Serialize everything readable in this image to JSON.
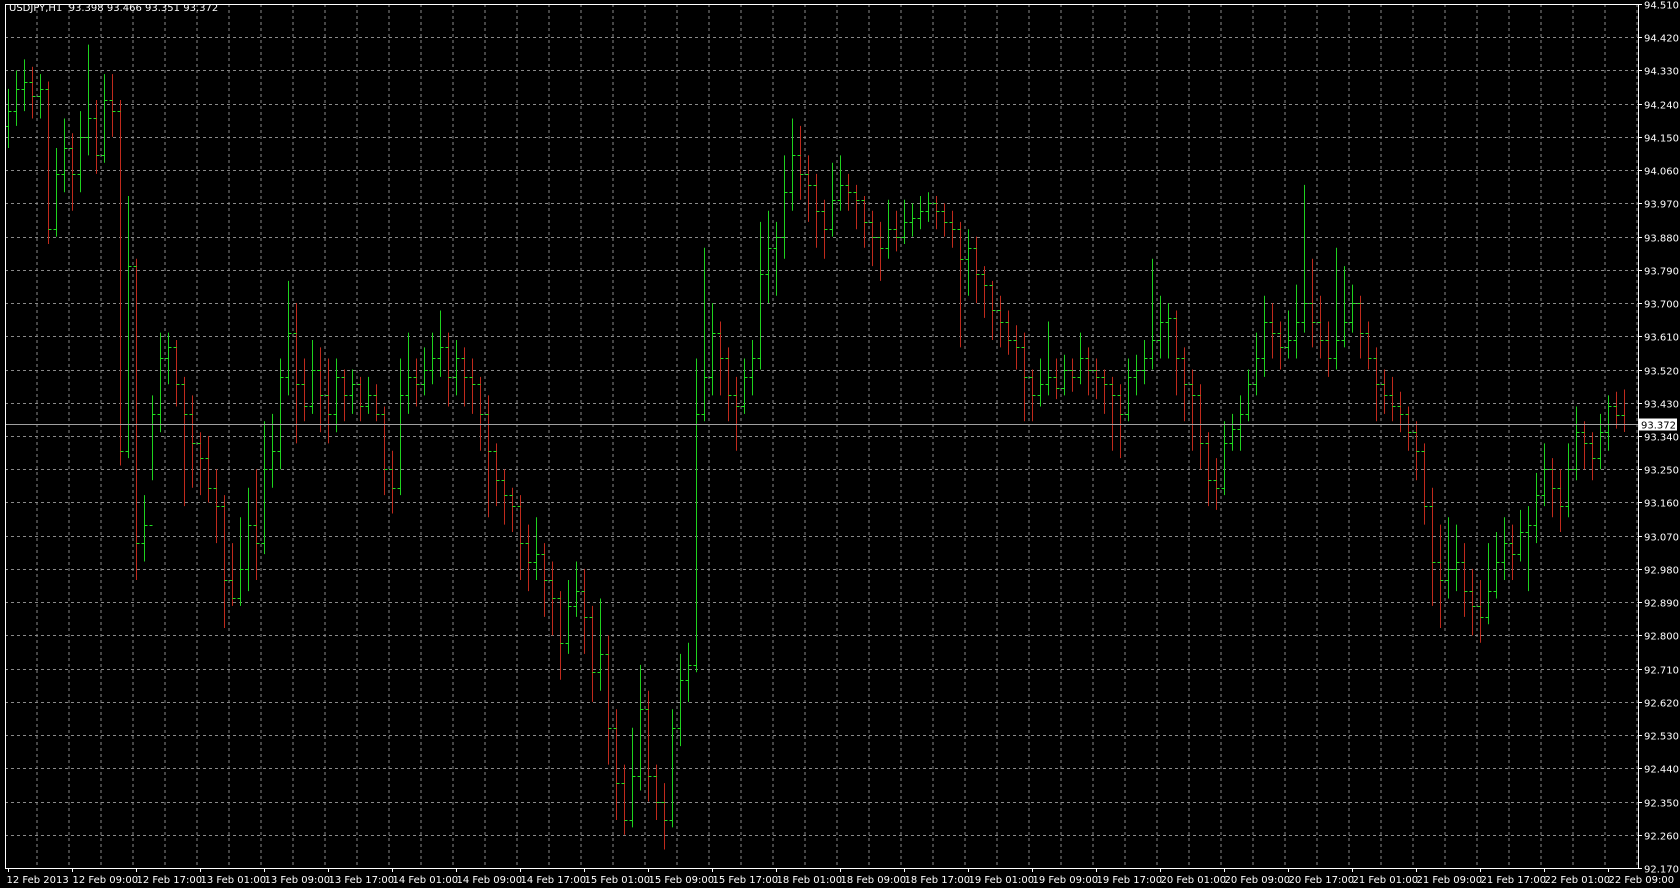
{
  "header": {
    "symbol": "USDJPY,H1",
    "open": "93.398",
    "high": "93.466",
    "low": "93.351",
    "close": "93.372"
  },
  "bid_line": {
    "value": 93.372,
    "label": "93.372"
  },
  "colors": {
    "background": "#000000",
    "bull": "#1ed21e",
    "bear": "#c02a1c",
    "tick": "#22e022",
    "grid": "#8a8a8a",
    "axis": "#ffffff",
    "bid_line": "#a0a0a0"
  },
  "chart_data": {
    "type": "ohlc-bar",
    "symbol": "USDJPY",
    "timeframe": "H1",
    "ylim": [
      92.17,
      94.51
    ],
    "grid": true,
    "y_ticks": [
      "94.510",
      "94.420",
      "94.330",
      "94.240",
      "94.150",
      "94.060",
      "93.970",
      "93.880",
      "93.790",
      "93.700",
      "93.610",
      "93.520",
      "93.430",
      "93.340",
      "93.250",
      "93.160",
      "93.070",
      "92.980",
      "92.890",
      "92.800",
      "92.710",
      "92.620",
      "92.530",
      "92.440",
      "92.350",
      "92.260",
      "92.170"
    ],
    "x_ticks": [
      "12 Feb 2013",
      "12 Feb 09:00",
      "12 Feb 17:00",
      "13 Feb 01:00",
      "13 Feb 09:00",
      "13 Feb 17:00",
      "14 Feb 01:00",
      "14 Feb 09:00",
      "14 Feb 17:00",
      "15 Feb 01:00",
      "15 Feb 09:00",
      "15 Feb 17:00",
      "18 Feb 01:00",
      "18 Feb 09:00",
      "18 Feb 17:00",
      "19 Feb 01:00",
      "19 Feb 09:00",
      "19 Feb 17:00",
      "20 Feb 01:00",
      "20 Feb 09:00",
      "20 Feb 17:00",
      "21 Feb 01:00",
      "21 Feb 09:00",
      "21 Feb 17:00",
      "22 Feb 01:00",
      "22 Feb 09:00"
    ],
    "bars": [
      [
        94.18,
        94.28,
        94.12,
        94.22
      ],
      [
        94.22,
        94.33,
        94.18,
        94.28
      ],
      [
        94.28,
        94.36,
        94.22,
        94.3
      ],
      [
        94.3,
        94.34,
        94.2,
        94.26
      ],
      [
        94.26,
        94.32,
        94.2,
        94.28
      ],
      [
        94.28,
        94.3,
        93.86,
        93.9
      ],
      [
        93.9,
        94.12,
        93.88,
        94.05
      ],
      [
        94.05,
        94.2,
        94.0,
        94.12
      ],
      [
        94.12,
        94.16,
        93.95,
        94.05
      ],
      [
        94.05,
        94.22,
        94.0,
        94.15
      ],
      [
        94.15,
        94.4,
        94.1,
        94.2
      ],
      [
        94.2,
        94.25,
        94.05,
        94.1
      ],
      [
        94.1,
        94.32,
        94.08,
        94.25
      ],
      [
        94.25,
        94.32,
        94.15,
        94.22
      ],
      [
        94.22,
        94.25,
        93.26,
        93.3
      ],
      [
        93.3,
        93.99,
        93.28,
        93.8
      ],
      [
        93.8,
        93.82,
        92.95,
        93.05
      ],
      [
        93.05,
        93.18,
        93.0,
        93.1
      ],
      [
        93.1,
        93.45,
        93.22,
        93.4
      ],
      [
        93.4,
        93.62,
        93.35,
        93.55
      ],
      [
        93.55,
        93.62,
        93.48,
        93.58
      ],
      [
        93.58,
        93.6,
        93.42,
        93.48
      ],
      [
        93.48,
        93.5,
        93.15,
        93.4
      ],
      [
        93.4,
        93.45,
        93.2,
        93.32
      ],
      [
        93.32,
        93.35,
        93.18,
        93.28
      ],
      [
        93.28,
        93.34,
        93.16,
        93.2
      ],
      [
        93.2,
        93.25,
        93.05,
        93.15
      ],
      [
        93.15,
        93.18,
        92.82,
        92.95
      ],
      [
        92.95,
        93.05,
        92.88,
        92.9
      ],
      [
        92.9,
        93.12,
        92.88,
        92.98
      ],
      [
        92.98,
        93.2,
        92.92,
        93.1
      ],
      [
        93.1,
        93.25,
        92.95,
        93.05
      ],
      [
        93.05,
        93.38,
        93.02,
        93.25
      ],
      [
        93.25,
        93.4,
        93.2,
        93.3
      ],
      [
        93.3,
        93.55,
        93.25,
        93.5
      ],
      [
        93.5,
        93.76,
        93.45,
        93.62
      ],
      [
        93.62,
        93.7,
        93.32,
        93.48
      ],
      [
        93.48,
        93.55,
        93.38,
        93.42
      ],
      [
        93.42,
        93.6,
        93.4,
        93.52
      ],
      [
        93.52,
        93.58,
        93.35,
        93.45
      ],
      [
        93.45,
        93.55,
        93.32,
        93.4
      ],
      [
        93.4,
        93.55,
        93.35,
        93.5
      ],
      [
        93.5,
        93.52,
        93.38,
        93.45
      ],
      [
        93.45,
        93.52,
        93.4,
        93.48
      ],
      [
        93.48,
        93.5,
        93.38,
        93.42
      ],
      [
        93.42,
        93.5,
        93.4,
        93.45
      ],
      [
        93.45,
        93.48,
        93.38,
        93.4
      ],
      [
        93.4,
        93.42,
        93.18,
        93.25
      ],
      [
        93.25,
        93.3,
        93.13,
        93.2
      ],
      [
        93.2,
        93.55,
        93.18,
        93.45
      ],
      [
        93.45,
        93.62,
        93.4,
        93.5
      ],
      [
        93.5,
        93.55,
        93.42,
        93.48
      ],
      [
        93.48,
        93.58,
        93.45,
        93.52
      ],
      [
        93.52,
        93.62,
        93.48,
        93.55
      ],
      [
        93.55,
        93.68,
        93.5,
        93.58
      ],
      [
        93.58,
        93.62,
        93.42,
        93.5
      ],
      [
        93.5,
        93.6,
        93.45,
        93.55
      ],
      [
        93.55,
        93.58,
        93.42,
        93.5
      ],
      [
        93.5,
        93.55,
        93.4,
        93.48
      ],
      [
        93.48,
        93.5,
        93.3,
        93.4
      ],
      [
        93.4,
        93.45,
        93.12,
        93.3
      ],
      [
        93.3,
        93.32,
        93.15,
        93.22
      ],
      [
        93.22,
        93.25,
        93.1,
        93.18
      ],
      [
        93.18,
        93.2,
        93.08,
        93.15
      ],
      [
        93.15,
        93.18,
        92.95,
        93.05
      ],
      [
        93.05,
        93.1,
        92.92,
        93.0
      ],
      [
        93.0,
        93.12,
        92.95,
        93.02
      ],
      [
        93.02,
        93.05,
        92.85,
        92.95
      ],
      [
        92.95,
        93.0,
        92.8,
        92.9
      ],
      [
        92.9,
        92.92,
        92.68,
        92.78
      ],
      [
        92.78,
        92.95,
        92.75,
        92.88
      ],
      [
        92.88,
        93.0,
        92.85,
        92.92
      ],
      [
        92.92,
        92.98,
        92.75,
        92.85
      ],
      [
        92.85,
        92.88,
        92.62,
        92.7
      ],
      [
        92.7,
        92.9,
        92.65,
        92.75
      ],
      [
        92.75,
        92.8,
        92.45,
        92.55
      ],
      [
        92.55,
        92.6,
        92.3,
        92.4
      ],
      [
        92.4,
        92.45,
        92.26,
        92.3
      ],
      [
        92.3,
        92.55,
        92.28,
        92.42
      ],
      [
        92.42,
        92.72,
        92.38,
        92.6
      ],
      [
        92.6,
        92.65,
        92.35,
        92.42
      ],
      [
        92.42,
        92.45,
        92.3,
        92.35
      ],
      [
        92.35,
        92.4,
        92.22,
        92.3
      ],
      [
        92.3,
        92.6,
        92.28,
        92.55
      ],
      [
        92.55,
        92.75,
        92.5,
        92.68
      ],
      [
        92.68,
        92.78,
        92.62,
        92.72
      ],
      [
        92.72,
        93.55,
        92.7,
        93.4
      ],
      [
        93.4,
        93.85,
        93.38,
        93.5
      ],
      [
        93.5,
        93.7,
        93.45,
        93.62
      ],
      [
        93.62,
        93.65,
        93.45,
        93.55
      ],
      [
        93.55,
        93.58,
        93.38,
        93.45
      ],
      [
        93.45,
        93.5,
        93.3,
        93.42
      ],
      [
        93.42,
        93.55,
        93.4,
        93.5
      ],
      [
        93.5,
        93.6,
        93.45,
        93.55
      ],
      [
        93.55,
        93.92,
        93.52,
        93.78
      ],
      [
        93.78,
        93.95,
        93.7,
        93.85
      ],
      [
        93.85,
        93.92,
        93.72,
        93.88
      ],
      [
        93.88,
        94.1,
        93.82,
        94.0
      ],
      [
        94.0,
        94.2,
        93.95,
        94.1
      ],
      [
        94.1,
        94.18,
        93.98,
        94.05
      ],
      [
        94.05,
        94.1,
        93.92,
        94.02
      ],
      [
        94.02,
        94.05,
        93.85,
        93.95
      ],
      [
        93.95,
        93.98,
        93.82,
        93.9
      ],
      [
        93.9,
        94.08,
        93.88,
        93.98
      ],
      [
        93.98,
        94.1,
        93.95,
        94.02
      ],
      [
        94.02,
        94.05,
        93.95,
        94.0
      ],
      [
        94.0,
        94.02,
        93.9,
        93.98
      ],
      [
        93.98,
        93.99,
        93.85,
        93.92
      ],
      [
        93.92,
        93.95,
        93.8,
        93.88
      ],
      [
        93.88,
        93.92,
        93.76,
        93.85
      ],
      [
        93.85,
        93.98,
        93.82,
        93.9
      ],
      [
        93.9,
        93.95,
        93.84,
        93.88
      ],
      [
        93.88,
        93.98,
        93.86,
        93.92
      ],
      [
        93.92,
        93.97,
        93.88,
        93.93
      ],
      [
        93.93,
        93.99,
        93.9,
        93.95
      ],
      [
        93.95,
        94.0,
        93.92,
        93.97
      ],
      [
        93.97,
        93.99,
        93.9,
        93.95
      ],
      [
        93.95,
        93.97,
        93.88,
        93.92
      ],
      [
        93.92,
        93.95,
        93.85,
        93.9
      ],
      [
        93.9,
        93.92,
        93.58,
        93.82
      ],
      [
        93.82,
        93.9,
        93.72,
        93.85
      ],
      [
        93.85,
        93.88,
        93.7,
        93.78
      ],
      [
        93.78,
        93.8,
        93.66,
        93.75
      ],
      [
        93.75,
        93.76,
        93.6,
        93.68
      ],
      [
        93.68,
        93.72,
        93.58,
        93.65
      ],
      [
        93.65,
        93.68,
        93.56,
        93.6
      ],
      [
        93.6,
        93.64,
        93.52,
        93.58
      ],
      [
        93.58,
        93.62,
        93.38,
        93.5
      ],
      [
        93.5,
        93.52,
        93.38,
        93.45
      ],
      [
        93.45,
        93.55,
        93.42,
        93.48
      ],
      [
        93.48,
        93.65,
        93.45,
        93.5
      ],
      [
        93.5,
        93.55,
        93.44,
        93.47
      ],
      [
        93.47,
        93.56,
        93.45,
        93.52
      ],
      [
        93.52,
        93.55,
        93.46,
        93.5
      ],
      [
        93.5,
        93.62,
        93.48,
        93.55
      ],
      [
        93.55,
        93.58,
        93.45,
        93.52
      ],
      [
        93.52,
        93.55,
        93.44,
        93.5
      ],
      [
        93.5,
        93.52,
        93.4,
        93.48
      ],
      [
        93.48,
        93.5,
        93.3,
        93.45
      ],
      [
        93.45,
        93.48,
        93.28,
        93.4
      ],
      [
        93.4,
        93.55,
        93.38,
        93.5
      ],
      [
        93.5,
        93.56,
        93.45,
        93.52
      ],
      [
        93.52,
        93.6,
        93.48,
        93.55
      ],
      [
        93.55,
        93.82,
        93.52,
        93.6
      ],
      [
        93.6,
        93.72,
        93.55,
        93.65
      ],
      [
        93.65,
        93.7,
        93.55,
        93.66
      ],
      [
        93.66,
        93.68,
        93.45,
        93.55
      ],
      [
        93.55,
        93.58,
        93.38,
        93.48
      ],
      [
        93.48,
        93.52,
        93.3,
        93.45
      ],
      [
        93.45,
        93.48,
        93.25,
        93.32
      ],
      [
        93.32,
        93.35,
        93.15,
        93.22
      ],
      [
        93.22,
        93.28,
        93.14,
        93.2
      ],
      [
        93.2,
        93.38,
        93.18,
        93.32
      ],
      [
        93.32,
        93.4,
        93.3,
        93.36
      ],
      [
        93.36,
        93.45,
        93.3,
        93.4
      ],
      [
        93.4,
        93.52,
        93.38,
        93.48
      ],
      [
        93.48,
        93.62,
        93.45,
        93.55
      ],
      [
        93.55,
        93.72,
        93.5,
        93.65
      ],
      [
        93.65,
        93.7,
        93.55,
        93.62
      ],
      [
        93.62,
        93.65,
        93.52,
        93.58
      ],
      [
        93.58,
        93.68,
        93.55,
        93.6
      ],
      [
        93.6,
        93.75,
        93.55,
        93.65
      ],
      [
        93.65,
        94.02,
        93.62,
        93.7
      ],
      [
        93.7,
        93.82,
        93.58,
        93.65
      ],
      [
        93.65,
        93.72,
        93.55,
        93.6
      ],
      [
        93.6,
        93.65,
        93.5,
        93.55
      ],
      [
        93.55,
        93.85,
        93.52,
        93.6
      ],
      [
        93.6,
        93.8,
        93.58,
        93.65
      ],
      [
        93.65,
        93.75,
        93.62,
        93.7
      ],
      [
        93.7,
        93.72,
        93.55,
        93.62
      ],
      [
        93.62,
        93.65,
        93.52,
        93.55
      ],
      [
        93.55,
        93.58,
        93.38,
        93.48
      ],
      [
        93.48,
        93.52,
        93.4,
        93.45
      ],
      [
        93.45,
        93.5,
        93.38,
        93.42
      ],
      [
        93.42,
        93.46,
        93.35,
        93.4
      ],
      [
        93.4,
        93.42,
        93.3,
        93.35
      ],
      [
        93.35,
        93.38,
        93.22,
        93.3
      ],
      [
        93.3,
        93.32,
        93.1,
        93.15
      ],
      [
        93.15,
        93.2,
        92.88,
        93.0
      ],
      [
        93.0,
        93.1,
        92.82,
        92.95
      ],
      [
        92.95,
        93.12,
        92.9,
        92.98
      ],
      [
        92.98,
        93.1,
        92.92,
        93.0
      ],
      [
        93.0,
        93.05,
        92.85,
        92.92
      ],
      [
        92.92,
        92.98,
        92.8,
        92.88
      ],
      [
        92.88,
        92.95,
        92.78,
        92.85
      ],
      [
        92.85,
        93.05,
        92.83,
        92.92
      ],
      [
        92.92,
        93.08,
        92.9,
        93.0
      ],
      [
        93.0,
        93.12,
        92.95,
        93.05
      ],
      [
        93.05,
        93.1,
        92.95,
        93.02
      ],
      [
        93.02,
        93.14,
        93.0,
        93.08
      ],
      [
        93.08,
        93.15,
        92.92,
        93.1
      ],
      [
        93.1,
        93.24,
        93.05,
        93.18
      ],
      [
        93.18,
        93.32,
        93.15,
        93.25
      ],
      [
        93.25,
        93.28,
        93.12,
        93.2
      ],
      [
        93.2,
        93.25,
        93.08,
        93.15
      ],
      [
        93.15,
        93.32,
        93.12,
        93.25
      ],
      [
        93.25,
        93.42,
        93.22,
        93.35
      ],
      [
        93.35,
        93.38,
        93.25,
        93.32
      ],
      [
        93.32,
        93.35,
        93.22,
        93.28
      ],
      [
        93.28,
        93.4,
        93.25,
        93.35
      ],
      [
        93.35,
        93.45,
        93.3,
        93.42
      ],
      [
        93.42,
        93.46,
        93.36,
        93.398
      ],
      [
        93.398,
        93.466,
        93.351,
        93.372
      ]
    ]
  }
}
